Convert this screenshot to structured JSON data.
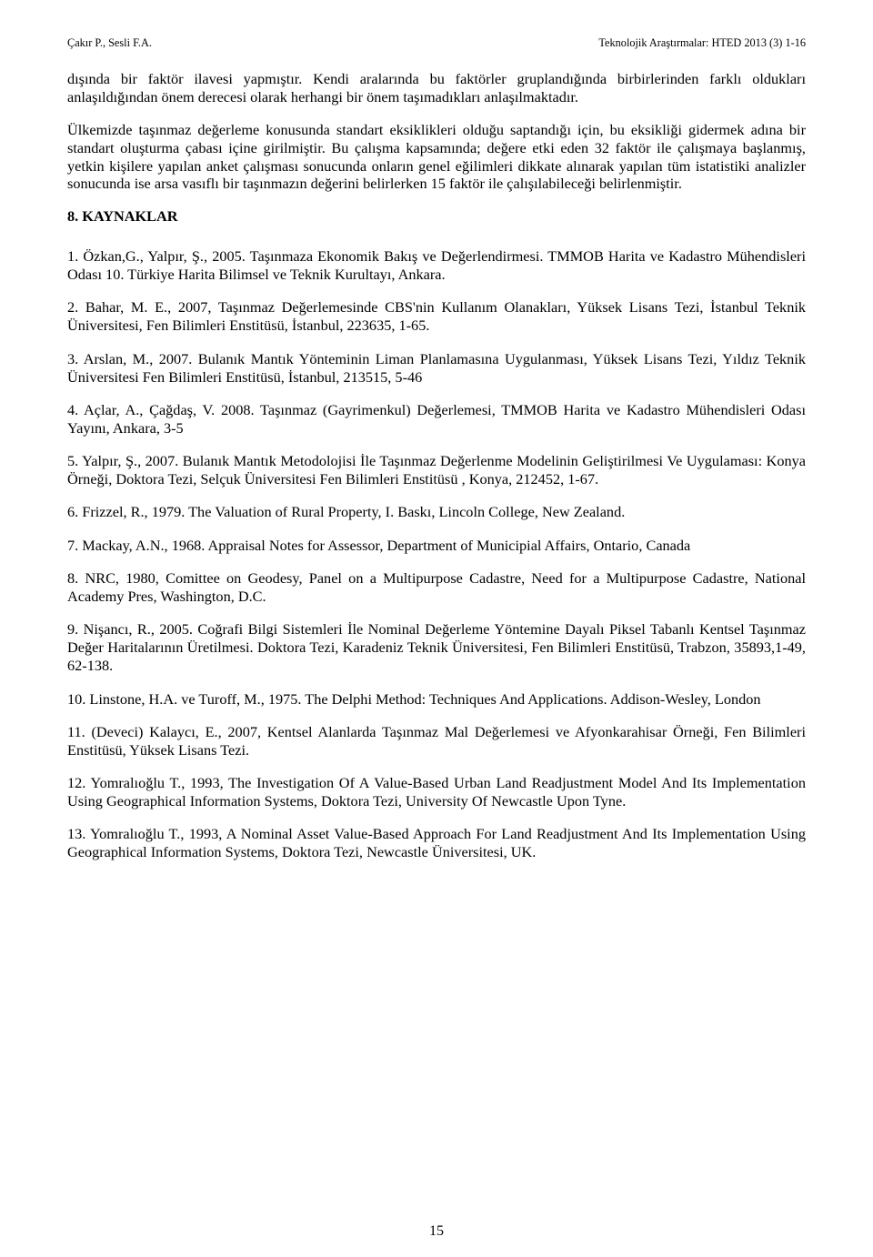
{
  "header": {
    "left": "Çakır P., Sesli F.A.",
    "right": "Teknolojik Araştırmalar: HTED 2013 (3) 1-16"
  },
  "paragraphs": {
    "p1": "dışında bir faktör  ilavesi yapmıştır. Kendi aralarında bu faktörler gruplandığında birbirlerinden farklı oldukları anlaşıldığından önem derecesi olarak herhangi bir önem taşımadıkları anlaşılmaktadır.",
    "p2": "Ülkemizde taşınmaz değerleme konusunda standart eksiklikleri olduğu saptandığı için, bu eksikliği gidermek adına bir standart oluşturma çabası içine girilmiştir. Bu çalışma kapsamında; değere etki eden 32 faktör ile çalışmaya başlanmış, yetkin kişilere yapılan anket çalışması sonucunda onların genel eğilimleri dikkate alınarak yapılan tüm istatistiki analizler sonucunda ise arsa vasıflı bir taşınmazın değerini belirlerken 15 faktör ile çalışılabileceği belirlenmiştir."
  },
  "section_title": "8. KAYNAKLAR",
  "refs": {
    "r1": "1. Özkan,G., Yalpır, Ş., 2005. Taşınmaza Ekonomik Bakış ve Değerlendirmesi. TMMOB Harita ve Kadastro Mühendisleri Odası 10. Türkiye Harita Bilimsel ve Teknik Kurultayı, Ankara.",
    "r2": "2. Bahar, M. E., 2007, Taşınmaz Değerlemesinde CBS'nin Kullanım Olanakları, Yüksek Lisans Tezi, İstanbul Teknik Üniversitesi,  Fen Bilimleri Enstitüsü, İstanbul, 223635, 1-65.",
    "r3": "3. Arslan, M., 2007. Bulanık Mantık Yönteminin Liman Planlamasına Uygulanması, Yüksek Lisans Tezi, Yıldız Teknik Üniversitesi Fen Bilimleri Enstitüsü, İstanbul, 213515, 5-46",
    "r4": "4. Açlar, A., Çağdaş, V. 2008. Taşınmaz (Gayrimenkul) Değerlemesi, TMMOB Harita ve Kadastro Mühendisleri Odası Yayını, Ankara, 3-5",
    "r5": "5. Yalpır, Ş., 2007. Bulanık Mantık Metodolojisi İle Taşınmaz Değerlenme Modelinin Geliştirilmesi Ve Uygulaması: Konya Örneği, Doktora Tezi, Selçuk Üniversitesi Fen Bilimleri Enstitüsü , Konya, 212452, 1-67.",
    "r6": "6. Frizzel, R., 1979. The Valuation of Rural Property, I. Baskı, Lincoln College, New Zealand.",
    "r7": "7. Mackay, A.N., 1968. Appraisal Notes for Assessor, Department of Municipial Affairs, Ontario, Canada",
    "r8": "8. NRC, 1980, Comittee on Geodesy, Panel on a Multipurpose Cadastre, Need for a Multipurpose Cadastre, National Academy Pres, Washington, D.C.",
    "r9": "9. Nişancı, R., 2005. Coğrafi Bilgi Sistemleri İle Nominal Değerleme Yöntemine Dayalı Piksel Tabanlı Kentsel Taşınmaz Değer Haritalarının Üretilmesi. Doktora Tezi, Karadeniz Teknik Üniversitesi, Fen Bilimleri Enstitüsü, Trabzon, 35893,1-49, 62-138.",
    "r10": "10. Linstone, H.A. ve Turoff, M., 1975. The Delphi Method: Techniques And Applications. Addison-Wesley, London",
    "r11": "11. (Deveci) Kalaycı, E., 2007, Kentsel Alanlarda Taşınmaz Mal Değerlemesi ve Afyonkarahisar Örneği, Fen Bilimleri Enstitüsü, Yüksek Lisans Tezi.",
    "r12": "12. Yomralıoğlu T., 1993, The Investigation Of A Value-Based Urban Land Readjustment Model And Its Implementation Using Geographical Information Systems, Doktora Tezi, University Of Newcastle Upon Tyne.",
    "r13": "13. Yomralıoğlu T., 1993, A Nominal Asset Value-Based Approach For Land Readjustment And Its Implementation Using Geographical Information Systems, Doktora Tezi, Newcastle Üniversitesi, UK."
  },
  "page_number": "15"
}
